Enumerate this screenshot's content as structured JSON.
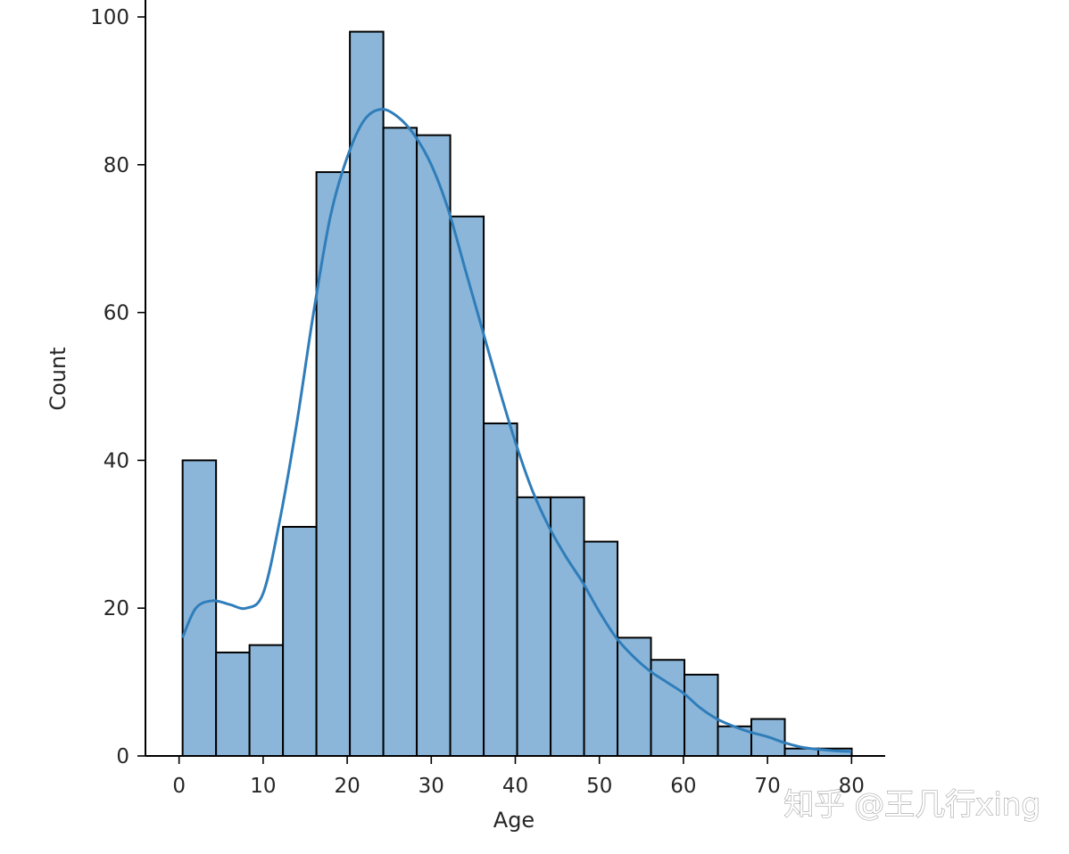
{
  "chart_data": {
    "type": "bar",
    "subtype": "histogram",
    "xlabel": "Age",
    "ylabel": "Count",
    "xlim": [
      -4,
      84
    ],
    "ylim": [
      0,
      102
    ],
    "xticks": [
      0,
      10,
      20,
      30,
      40,
      50,
      60,
      70,
      80
    ],
    "yticks": [
      0,
      20,
      40,
      60,
      80,
      100
    ],
    "grid": false,
    "bins": [
      {
        "x0": 0.42,
        "x1": 4.4,
        "count": 40
      },
      {
        "x0": 4.4,
        "x1": 8.38,
        "count": 14
      },
      {
        "x0": 8.38,
        "x1": 12.36,
        "count": 15
      },
      {
        "x0": 12.36,
        "x1": 16.34,
        "count": 31
      },
      {
        "x0": 16.34,
        "x1": 20.32,
        "count": 79
      },
      {
        "x0": 20.32,
        "x1": 24.3,
        "count": 98
      },
      {
        "x0": 24.3,
        "x1": 28.28,
        "count": 85
      },
      {
        "x0": 28.28,
        "x1": 32.26,
        "count": 84
      },
      {
        "x0": 32.26,
        "x1": 36.24,
        "count": 73
      },
      {
        "x0": 36.24,
        "x1": 40.22,
        "count": 45
      },
      {
        "x0": 40.22,
        "x1": 44.2,
        "count": 35
      },
      {
        "x0": 44.2,
        "x1": 48.18,
        "count": 35
      },
      {
        "x0": 48.18,
        "x1": 52.16,
        "count": 29
      },
      {
        "x0": 52.16,
        "x1": 56.14,
        "count": 16
      },
      {
        "x0": 56.14,
        "x1": 60.12,
        "count": 13
      },
      {
        "x0": 60.12,
        "x1": 64.1,
        "count": 11
      },
      {
        "x0": 64.1,
        "x1": 68.08,
        "count": 4
      },
      {
        "x0": 68.08,
        "x1": 72.06,
        "count": 5
      },
      {
        "x0": 72.06,
        "x1": 76.04,
        "count": 1
      },
      {
        "x0": 76.04,
        "x1": 80.02,
        "count": 1
      }
    ],
    "kde": {
      "x": [
        0.4,
        2,
        4,
        6,
        8,
        10,
        12,
        14,
        16,
        18,
        20,
        22,
        24,
        26,
        28,
        30,
        32,
        34,
        36,
        38,
        40,
        42,
        44,
        46,
        48,
        50,
        52,
        54,
        56,
        58,
        60,
        62,
        64,
        66,
        68,
        70,
        72,
        74,
        76,
        78,
        80
      ],
      "y": [
        16,
        20,
        21,
        20.5,
        20,
        22,
        32,
        45,
        60,
        73,
        81,
        86,
        87.5,
        86.5,
        84,
        80,
        74,
        66,
        58,
        50,
        42.5,
        36,
        31,
        27,
        23.5,
        19.5,
        16,
        13.5,
        11.5,
        10,
        8.5,
        6.5,
        5,
        4,
        3.2,
        2.6,
        1.8,
        1.2,
        0.9,
        0.7,
        0.6
      ]
    },
    "colors": {
      "bar_fill": "#8bb6d9",
      "bar_edge": "#000000",
      "kde_line": "#2f7dba",
      "axis": "#000000",
      "text": "#262626"
    }
  },
  "watermark": {
    "text": "知乎 @王几行xing"
  }
}
